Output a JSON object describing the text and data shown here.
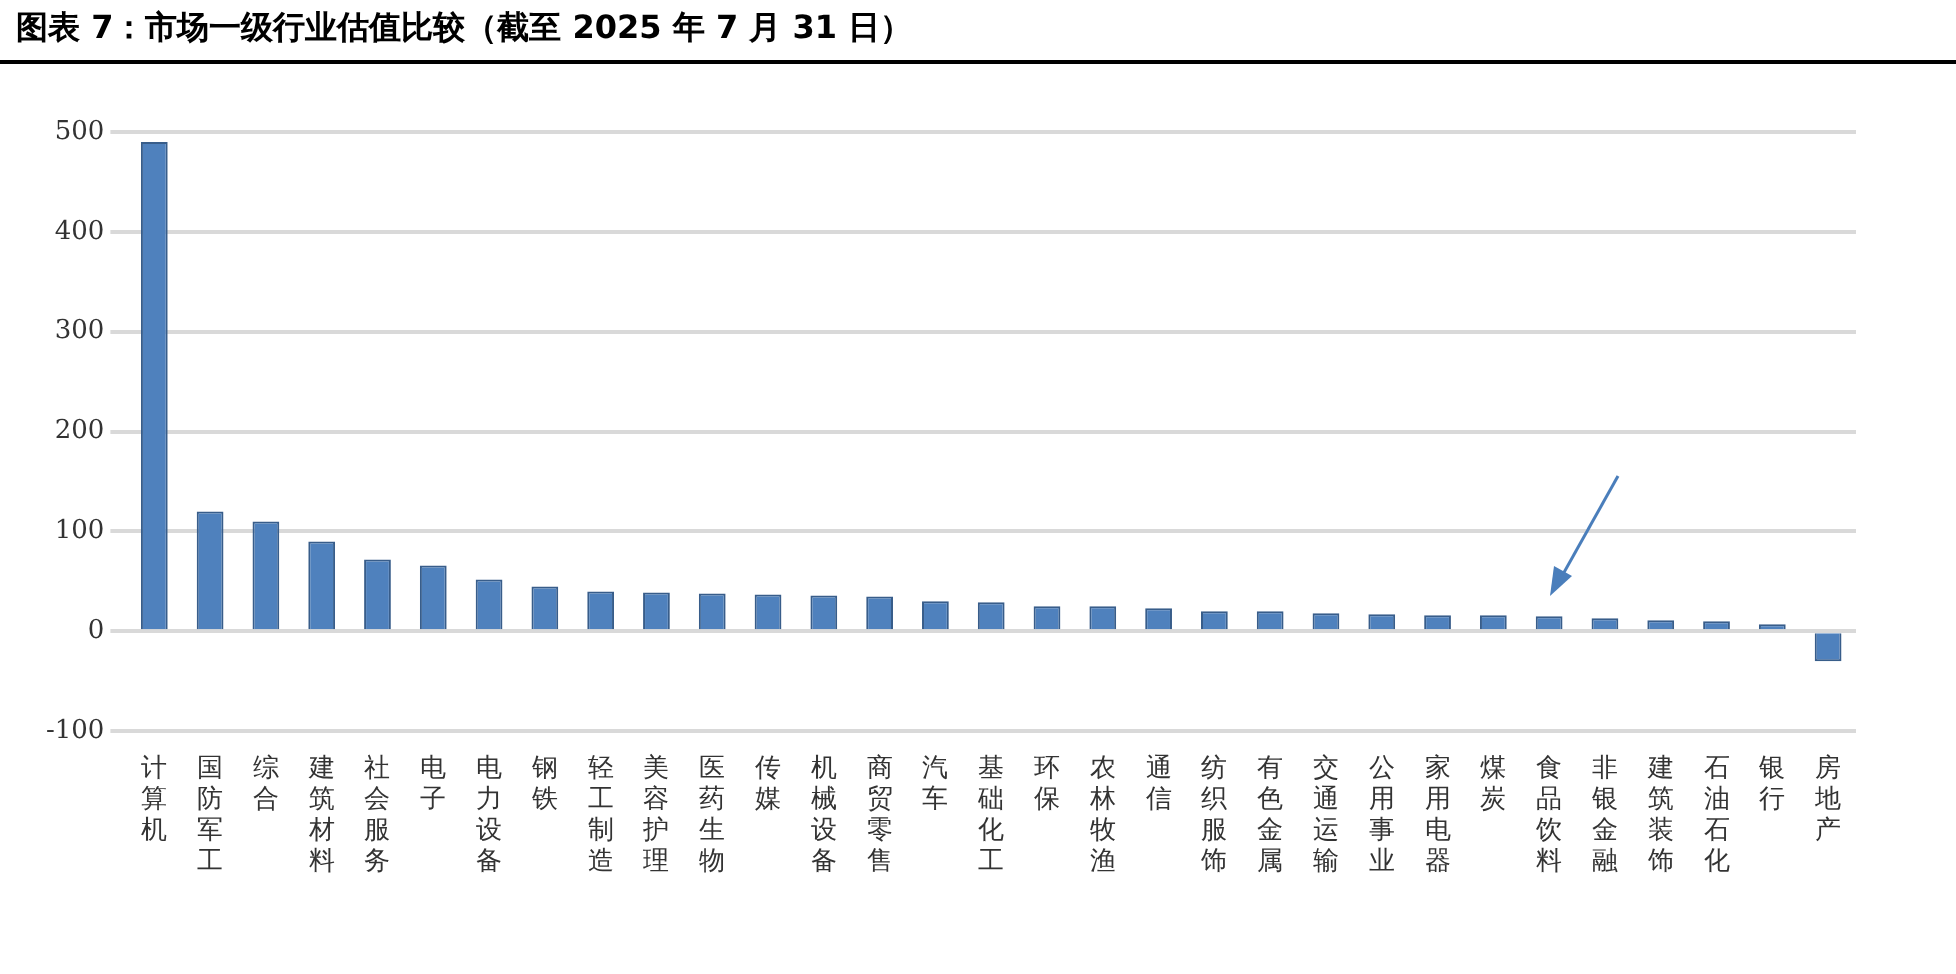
{
  "chart_data": {
    "type": "bar",
    "title": "图表 7：市场一级行业估值比较（截至 2025 年 7 月 31 日）",
    "categories": [
      "计算机",
      "国防军工",
      "综合",
      "建筑材料",
      "社会服务",
      "电子",
      "电力设备",
      "钢铁",
      "轻工制造",
      "美容护理",
      "医药生物",
      "传媒",
      "机械设备",
      "商贸零售",
      "汽车",
      "基础化工",
      "环保",
      "农林牧渔",
      "通信",
      "纺织服饰",
      "有色金属",
      "交通运输",
      "公用事业",
      "家用电器",
      "煤炭",
      "食品饮料",
      "非银金融",
      "建筑装饰",
      "石油石化",
      "银行",
      "房地产"
    ],
    "values": [
      490,
      120,
      110,
      90,
      72,
      66,
      52,
      45,
      40,
      39,
      38,
      37,
      36,
      35,
      30,
      29,
      25,
      25,
      23,
      20,
      20,
      18,
      17,
      16,
      16,
      15,
      13,
      11,
      10,
      7,
      -30
    ],
    "color": "#4f81bd",
    "ylim": [
      -100,
      500
    ],
    "yticks": [
      -100,
      0,
      100,
      200,
      300,
      400,
      500
    ],
    "grid": "y",
    "legend": false
  }
}
